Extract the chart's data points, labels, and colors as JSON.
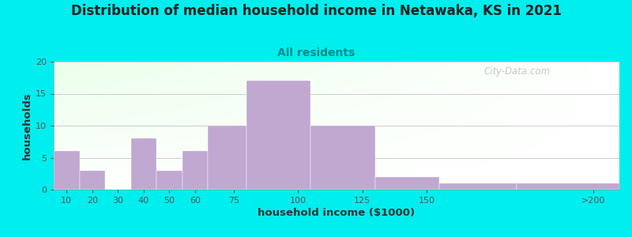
{
  "title": "Distribution of median household income in Netawaka, KS in 2021",
  "subtitle": "All residents",
  "xlabel": "household income ($1000)",
  "ylabel": "households",
  "bg_color": "#00EEEE",
  "bar_color": "#C0A8D0",
  "bar_edge_color": "#C0A8D0",
  "values": [
    6,
    3,
    0,
    8,
    3,
    6,
    10,
    17,
    10,
    2,
    1,
    1
  ],
  "bar_lefts": [
    5,
    15,
    25,
    35,
    45,
    55,
    65,
    80,
    105,
    130,
    155,
    185
  ],
  "bar_widths": [
    10,
    10,
    10,
    10,
    10,
    10,
    15,
    25,
    25,
    25,
    30,
    40
  ],
  "ylim": [
    0,
    20
  ],
  "yticks": [
    0,
    5,
    10,
    15,
    20
  ],
  "xtick_positions": [
    10,
    20,
    30,
    40,
    50,
    60,
    75,
    100,
    125,
    150,
    215
  ],
  "xtick_labels": [
    "10",
    "20",
    "30",
    "40",
    "50",
    "60",
    "75",
    "100",
    "125",
    "150",
    ">200"
  ],
  "xlim": [
    5,
    225
  ],
  "watermark": "City-Data.com",
  "title_fontsize": 12,
  "subtitle_fontsize": 10,
  "axis_label_fontsize": 9.5
}
